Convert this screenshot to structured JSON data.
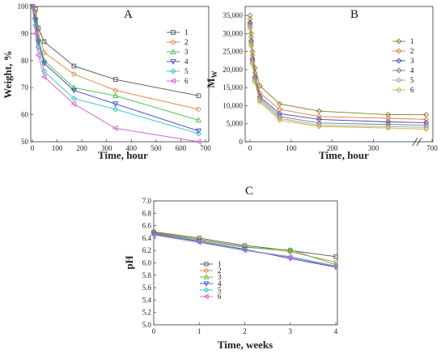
{
  "chart_data": [
    {
      "panel": "A",
      "type": "line",
      "xlabel": "Time, hour",
      "ylabel": "Weight, %",
      "xlim": [
        0,
        700
      ],
      "ylim": [
        50,
        100
      ],
      "xticks": [
        0,
        100,
        200,
        300,
        400,
        500,
        600,
        700
      ],
      "yticks": [
        50,
        60,
        70,
        80,
        90,
        100
      ],
      "legend_position": "top-right",
      "series": [
        {
          "name": "1",
          "color": "#555555",
          "marker": "square",
          "x": [
            0,
            12,
            24,
            48,
            168,
            336,
            672
          ],
          "y": [
            100,
            99,
            92,
            87,
            78,
            73,
            67
          ]
        },
        {
          "name": "2",
          "color": "#e07b39",
          "marker": "circle",
          "x": [
            0,
            12,
            24,
            48,
            168,
            336,
            672
          ],
          "y": [
            100,
            98,
            90,
            83,
            75,
            69,
            62
          ]
        },
        {
          "name": "3",
          "color": "#3fbf3f",
          "marker": "triangle",
          "x": [
            0,
            12,
            24,
            48,
            168,
            336,
            672
          ],
          "y": [
            100,
            96,
            88,
            80,
            70,
            67,
            58
          ]
        },
        {
          "name": "4",
          "color": "#4040c0",
          "marker": "triangle-down",
          "x": [
            0,
            12,
            24,
            48,
            168,
            336,
            672
          ],
          "y": [
            100,
            95,
            87,
            79,
            69,
            64,
            54
          ]
        },
        {
          "name": "5",
          "color": "#30c0c0",
          "marker": "diamond",
          "x": [
            0,
            12,
            24,
            48,
            168,
            336,
            672
          ],
          "y": [
            100,
            93,
            85,
            76,
            66,
            62,
            53
          ]
        },
        {
          "name": "6",
          "color": "#d060d0",
          "marker": "triangle-left",
          "x": [
            0,
            12,
            24,
            48,
            168,
            336,
            672
          ],
          "y": [
            100,
            90,
            82,
            74,
            64,
            55,
            50
          ]
        }
      ]
    },
    {
      "panel": "B",
      "type": "line",
      "xlabel": "Time, hour",
      "ylabel": "Mw",
      "x_break": "axis break between 350 and 650",
      "xticks": [
        0,
        100,
        200,
        300,
        700
      ],
      "ylim": [
        0,
        37500
      ],
      "yticks": [
        0,
        5000,
        10000,
        15000,
        20000,
        25000,
        30000,
        35000
      ],
      "legend_position": "top-right",
      "series": [
        {
          "name": "1",
          "color": "#8b7a2b",
          "marker": "diamond",
          "x": [
            0,
            3,
            6,
            12,
            24,
            72,
            168,
            336,
            672
          ],
          "y": [
            35000,
            30000,
            25000,
            20500,
            15500,
            10500,
            8500,
            7500,
            7500
          ]
        },
        {
          "name": "2",
          "color": "#e07b39",
          "marker": "diamond",
          "x": [
            0,
            3,
            6,
            12,
            24,
            72,
            168,
            336,
            672
          ],
          "y": [
            34000,
            29000,
            24000,
            19000,
            13500,
            9000,
            7000,
            6500,
            6200
          ]
        },
        {
          "name": "3",
          "color": "#4040c0",
          "marker": "diamond",
          "x": [
            0,
            3,
            6,
            12,
            24,
            72,
            168,
            336,
            672
          ],
          "y": [
            33000,
            28000,
            23000,
            18000,
            12500,
            7800,
            6200,
            5500,
            5300
          ]
        },
        {
          "name": "4",
          "color": "#7a7a7a",
          "marker": "diamond",
          "x": [
            0,
            3,
            6,
            12,
            24,
            72,
            168,
            336,
            672
          ],
          "y": [
            32500,
            27500,
            22500,
            17500,
            12000,
            7000,
            5200,
            4800,
            4600
          ]
        },
        {
          "name": "5",
          "color": "#a0a0a0",
          "marker": "diamond",
          "x": [
            0,
            3,
            6,
            12,
            24,
            72,
            168,
            336,
            672
          ],
          "y": [
            32000,
            27000,
            22000,
            17000,
            11500,
            6500,
            4600,
            4200,
            4000
          ]
        },
        {
          "name": "6",
          "color": "#c9b037",
          "marker": "diamond",
          "x": [
            0,
            3,
            6,
            12,
            24,
            72,
            168,
            336,
            672
          ],
          "y": [
            31500,
            26500,
            21500,
            16500,
            11000,
            6000,
            4200,
            3800,
            3500
          ]
        }
      ]
    },
    {
      "panel": "C",
      "type": "line",
      "xlabel": "Time, weeks",
      "ylabel": "pH",
      "xlim": [
        0,
        4
      ],
      "ylim": [
        5.0,
        7.0
      ],
      "xticks": [
        0,
        1,
        2,
        3,
        4
      ],
      "yticks": [
        5.0,
        5.2,
        5.4,
        5.6,
        5.8,
        6.0,
        6.2,
        6.4,
        6.6,
        6.8,
        7.0
      ],
      "legend_position": "bottom-left",
      "series": [
        {
          "name": "1",
          "color": "#555555",
          "marker": "square",
          "x": [
            0,
            1,
            2,
            3,
            4
          ],
          "y": [
            6.5,
            6.4,
            6.28,
            6.2,
            6.1
          ]
        },
        {
          "name": "2",
          "color": "#e07b39",
          "marker": "circle",
          "x": [
            0,
            1,
            2,
            3,
            4
          ],
          "y": [
            6.49,
            6.38,
            6.26,
            6.18,
            6.01
          ]
        },
        {
          "name": "3",
          "color": "#3fbf3f",
          "marker": "triangle",
          "x": [
            0,
            1,
            2,
            3,
            4
          ],
          "y": [
            6.48,
            6.37,
            6.25,
            6.21,
            5.97
          ]
        },
        {
          "name": "4",
          "color": "#4040c0",
          "marker": "triangle-down",
          "x": [
            0,
            1,
            2,
            3,
            4
          ],
          "y": [
            6.47,
            6.35,
            6.22,
            6.07,
            5.93
          ]
        },
        {
          "name": "5",
          "color": "#30c0c0",
          "marker": "diamond",
          "x": [
            0,
            1,
            2,
            3,
            4
          ],
          "y": [
            6.46,
            6.34,
            6.21,
            6.1,
            5.95
          ]
        },
        {
          "name": "6",
          "color": "#d060d0",
          "marker": "triangle-left",
          "x": [
            0,
            1,
            2,
            3,
            4
          ],
          "y": [
            6.45,
            6.33,
            6.2,
            6.09,
            5.94
          ]
        }
      ]
    }
  ]
}
